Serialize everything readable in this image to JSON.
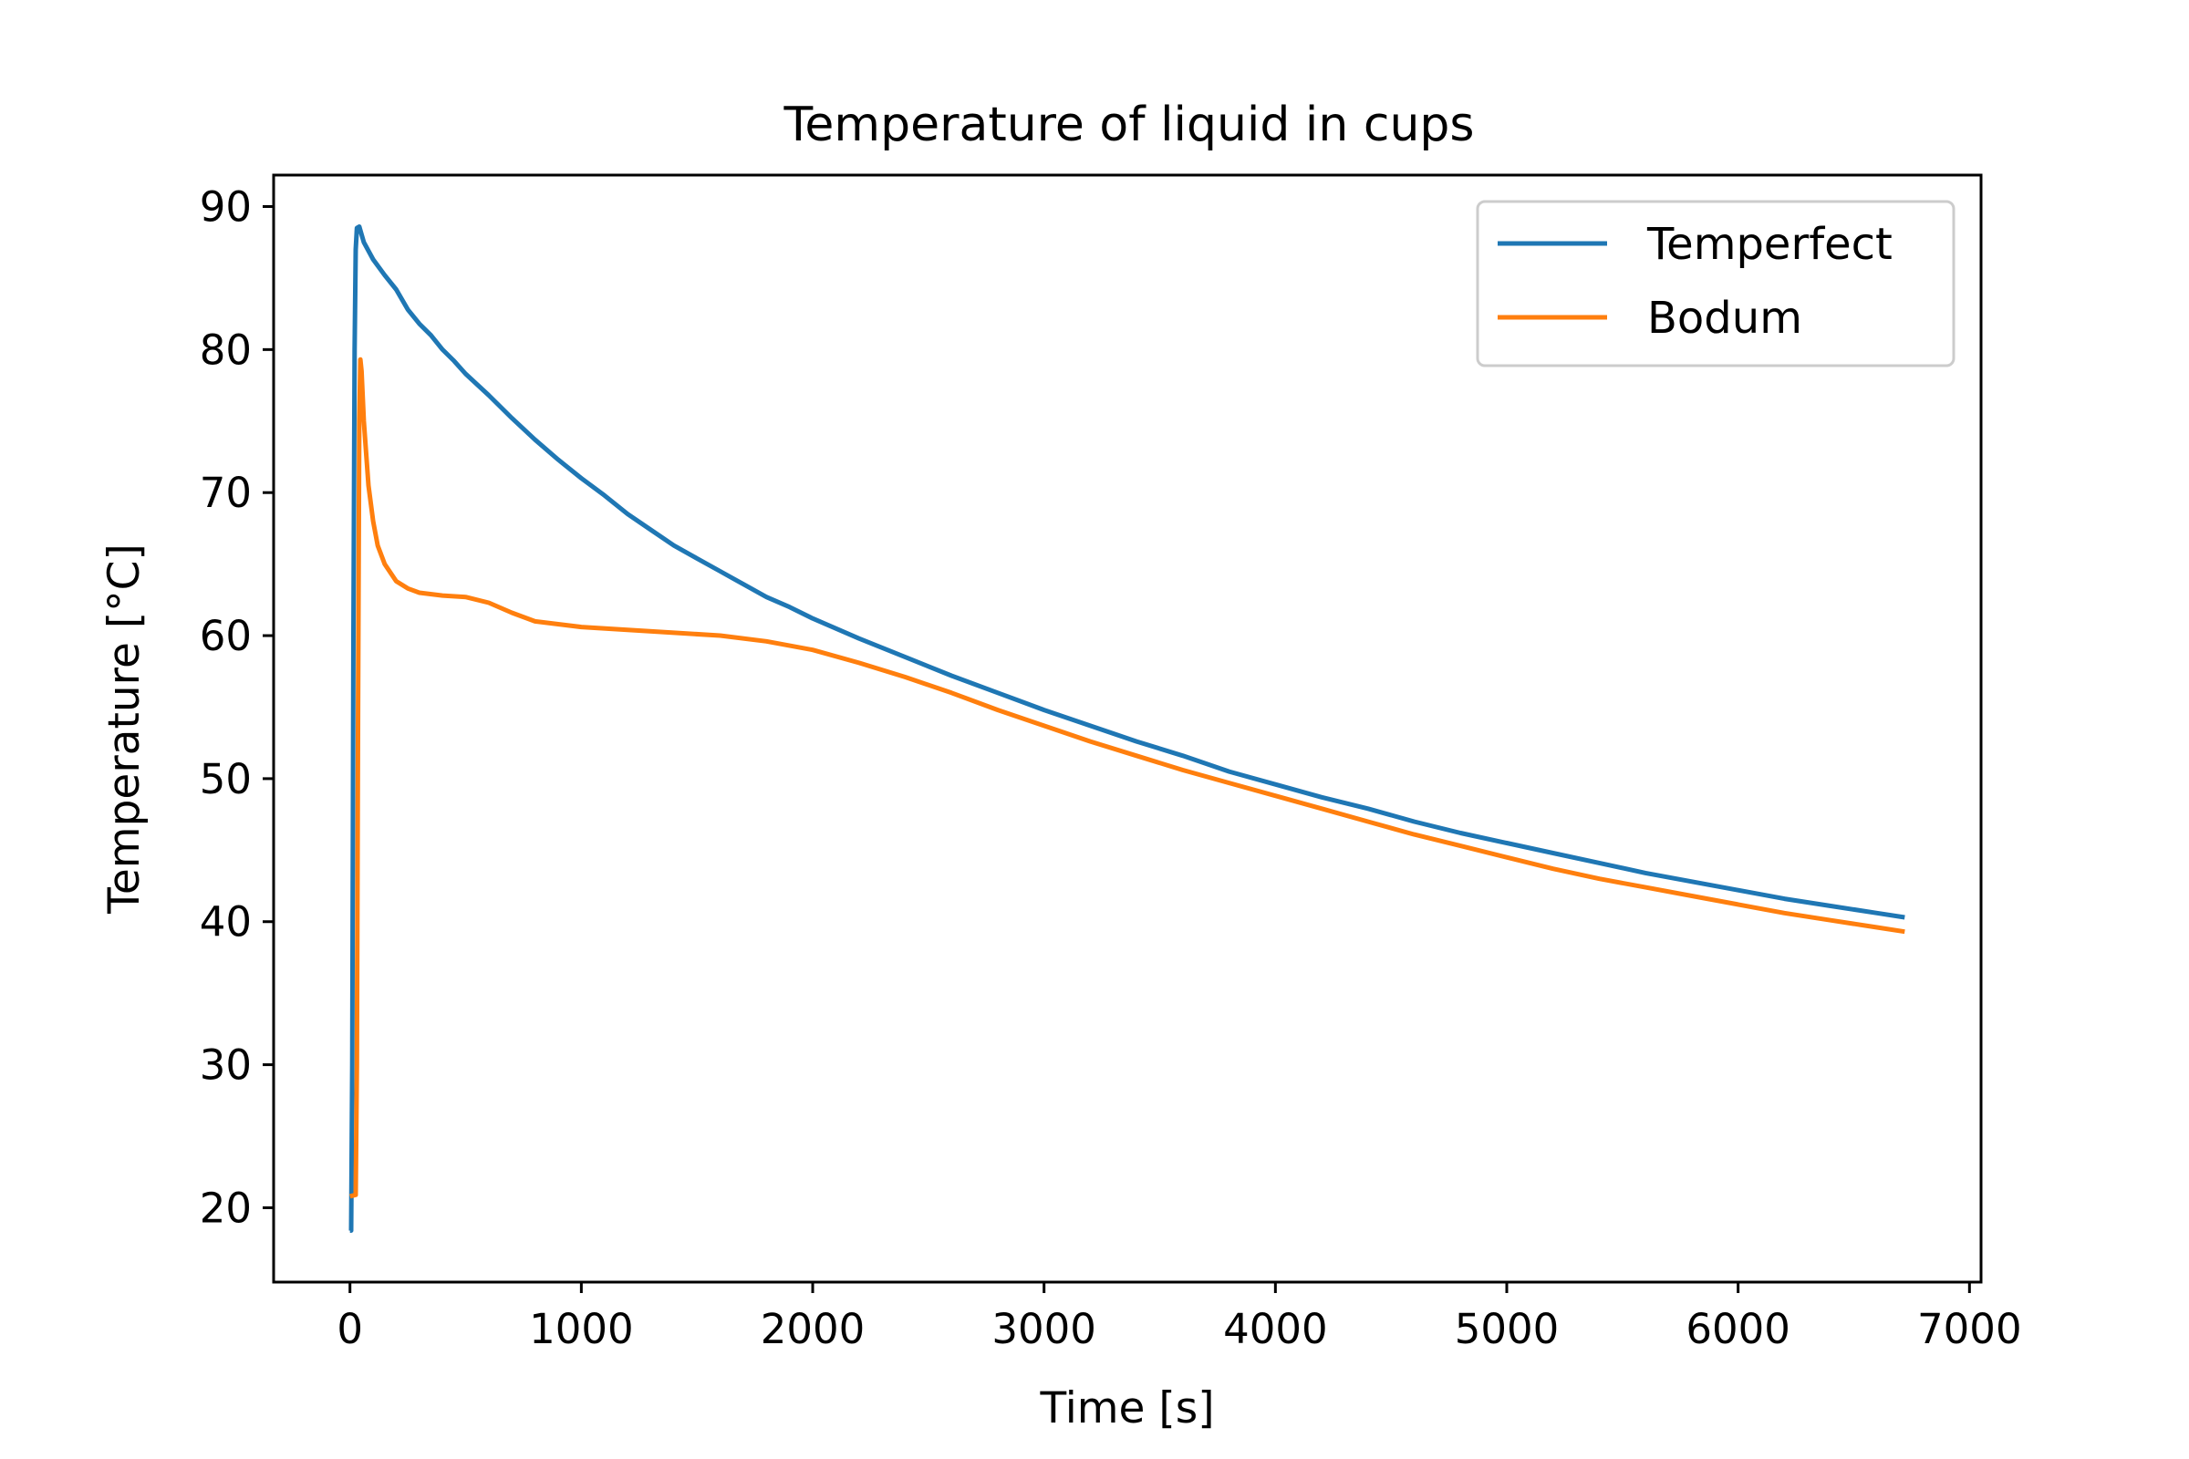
{
  "chart_data": {
    "type": "line",
    "title": "Temperature of liquid in cups",
    "xlabel": "Time [s]",
    "ylabel": "Temperature [°C]",
    "xlim": [
      -330,
      7050
    ],
    "ylim": [
      14.8,
      92.2
    ],
    "xticks": [
      0,
      1000,
      2000,
      3000,
      4000,
      5000,
      6000,
      7000
    ],
    "yticks": [
      20,
      30,
      40,
      50,
      60,
      70,
      80,
      90
    ],
    "grid": false,
    "legend_position": "upper right",
    "series": [
      {
        "name": "Temperfect",
        "color": "#1f77b4",
        "points": [
          [
            0,
            18.4
          ],
          [
            5,
            18.4
          ],
          [
            10,
            30
          ],
          [
            15,
            60
          ],
          [
            20,
            80
          ],
          [
            25,
            87
          ],
          [
            30,
            88.5
          ],
          [
            40,
            88.6
          ],
          [
            60,
            87.5
          ],
          [
            100,
            86.3
          ],
          [
            150,
            85.2
          ],
          [
            200,
            84.2
          ],
          [
            250,
            82.8
          ],
          [
            300,
            81.8
          ],
          [
            350,
            81.0
          ],
          [
            400,
            80.0
          ],
          [
            450,
            79.2
          ],
          [
            500,
            78.3
          ],
          [
            600,
            76.8
          ],
          [
            700,
            75.2
          ],
          [
            800,
            73.7
          ],
          [
            900,
            72.3
          ],
          [
            1000,
            71.0
          ],
          [
            1100,
            69.8
          ],
          [
            1200,
            68.5
          ],
          [
            1300,
            67.4
          ],
          [
            1400,
            66.3
          ],
          [
            1500,
            65.4
          ],
          [
            1600,
            64.5
          ],
          [
            1700,
            63.6
          ],
          [
            1800,
            62.7
          ],
          [
            1900,
            62.0
          ],
          [
            2000,
            61.2
          ],
          [
            2200,
            59.8
          ],
          [
            2400,
            58.5
          ],
          [
            2600,
            57.2
          ],
          [
            2800,
            56.0
          ],
          [
            3000,
            54.8
          ],
          [
            3200,
            53.7
          ],
          [
            3400,
            52.6
          ],
          [
            3600,
            51.6
          ],
          [
            3800,
            50.5
          ],
          [
            4000,
            49.6
          ],
          [
            4200,
            48.7
          ],
          [
            4400,
            47.9
          ],
          [
            4600,
            47.0
          ],
          [
            4800,
            46.2
          ],
          [
            5000,
            45.5
          ],
          [
            5200,
            44.8
          ],
          [
            5400,
            44.1
          ],
          [
            5600,
            43.4
          ],
          [
            5800,
            42.8
          ],
          [
            6000,
            42.2
          ],
          [
            6200,
            41.6
          ],
          [
            6400,
            41.1
          ],
          [
            6600,
            40.6
          ],
          [
            6720,
            40.3
          ]
        ]
      },
      {
        "name": "Bodum",
        "color": "#ff7f0e",
        "points": [
          [
            0,
            20.8
          ],
          [
            25,
            20.9
          ],
          [
            30,
            30
          ],
          [
            35,
            55
          ],
          [
            40,
            75
          ],
          [
            45,
            79.3
          ],
          [
            50,
            78.5
          ],
          [
            60,
            75
          ],
          [
            80,
            70.5
          ],
          [
            100,
            68
          ],
          [
            120,
            66.3
          ],
          [
            150,
            65
          ],
          [
            200,
            63.8
          ],
          [
            250,
            63.3
          ],
          [
            300,
            63.0
          ],
          [
            400,
            62.8
          ],
          [
            500,
            62.7
          ],
          [
            600,
            62.3
          ],
          [
            700,
            61.6
          ],
          [
            800,
            61.0
          ],
          [
            900,
            60.8
          ],
          [
            1000,
            60.6
          ],
          [
            1200,
            60.4
          ],
          [
            1400,
            60.2
          ],
          [
            1600,
            60.0
          ],
          [
            1800,
            59.6
          ],
          [
            2000,
            59.0
          ],
          [
            2200,
            58.1
          ],
          [
            2400,
            57.1
          ],
          [
            2600,
            56.0
          ],
          [
            2800,
            54.8
          ],
          [
            3000,
            53.7
          ],
          [
            3200,
            52.6
          ],
          [
            3400,
            51.6
          ],
          [
            3600,
            50.6
          ],
          [
            3800,
            49.7
          ],
          [
            4000,
            48.8
          ],
          [
            4200,
            47.9
          ],
          [
            4400,
            47.0
          ],
          [
            4600,
            46.1
          ],
          [
            4800,
            45.3
          ],
          [
            5000,
            44.5
          ],
          [
            5200,
            43.7
          ],
          [
            5400,
            43.0
          ],
          [
            5600,
            42.4
          ],
          [
            5800,
            41.8
          ],
          [
            6000,
            41.2
          ],
          [
            6200,
            40.6
          ],
          [
            6400,
            40.1
          ],
          [
            6600,
            39.6
          ],
          [
            6720,
            39.3
          ]
        ]
      }
    ]
  }
}
